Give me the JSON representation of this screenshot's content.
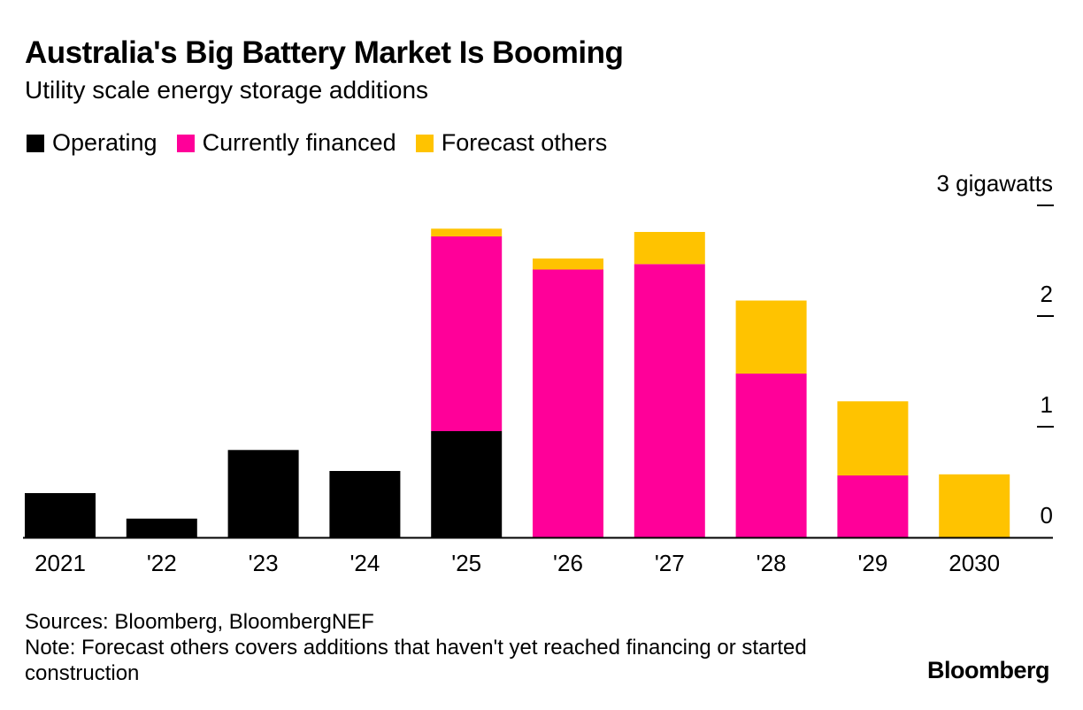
{
  "colors": {
    "operating": "#000000",
    "currently_financed": "#ff0099",
    "forecast_others": "#ffc300"
  },
  "chart_data": {
    "type": "bar",
    "stacked": true,
    "title": "Australia's Big Battery Market Is Booming",
    "subtitle": "Utility scale energy storage additions",
    "categories": [
      "2021",
      "'22",
      "'23",
      "'24",
      "'25",
      "'26",
      "'27",
      "'28",
      "'29",
      "2030"
    ],
    "series": [
      {
        "name": "Operating",
        "color": "#000000",
        "values": [
          0.4,
          0.17,
          0.79,
          0.6,
          0.96,
          0,
          0,
          0,
          0,
          0
        ]
      },
      {
        "name": "Currently financed",
        "color": "#ff0099",
        "values": [
          0,
          0,
          0,
          0,
          1.76,
          2.42,
          2.47,
          1.48,
          0.56,
          0
        ]
      },
      {
        "name": "Forecast others",
        "color": "#ffc300",
        "values": [
          0,
          0,
          0,
          0,
          0.07,
          0.1,
          0.29,
          0.66,
          0.67,
          0.57
        ]
      }
    ],
    "y_ticks": [
      {
        "value": 0,
        "label": "0"
      },
      {
        "value": 1,
        "label": "1"
      },
      {
        "value": 2,
        "label": "2"
      },
      {
        "value": 3,
        "label": "3 gigawatts"
      }
    ],
    "ylim": [
      0,
      3
    ],
    "ylabel": "",
    "xlabel": "",
    "legend_position": "top-left",
    "axis_position": "right",
    "grid": false
  },
  "source": {
    "line1": "Sources: Bloomberg, BloombergNEF",
    "line2": "Note: Forecast others covers additions that haven't yet reached financing or started construction"
  },
  "logo": "Bloomberg"
}
